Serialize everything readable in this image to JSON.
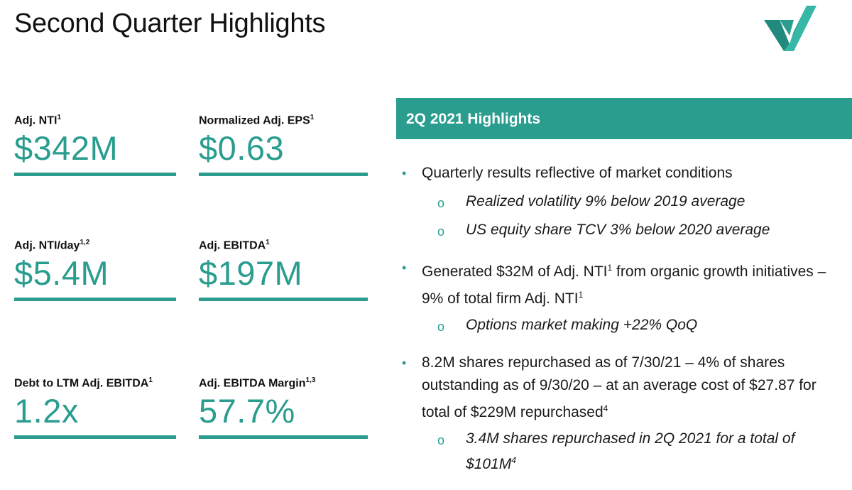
{
  "slide": {
    "title": "Second Quarter Highlights",
    "logo": "virtu-checkmark-logo"
  },
  "metrics": [
    {
      "label": "Adj. NTI",
      "sup": "1",
      "value": "$342M"
    },
    {
      "label": "Normalized Adj. EPS",
      "sup": "1",
      "value": "$0.63"
    },
    {
      "label": "Adj. NTI/day",
      "sup": "1,2",
      "value": "$5.4M"
    },
    {
      "label": "Adj. EBITDA",
      "sup": "1",
      "value": "$197M"
    },
    {
      "label": "Debt to LTM Adj. EBITDA",
      "sup": "1",
      "value": "1.2x"
    },
    {
      "label": "Adj. EBITDA Margin",
      "sup": "1,3",
      "value": "57.7%"
    }
  ],
  "highlights": {
    "header": "2Q 2021 Highlights",
    "bullet1": "Quarterly results reflective of market conditions",
    "bullet1_sub1": "Realized volatility 9% below 2019 average",
    "bullet1_sub2": "US equity share TCV 3% below 2020 average",
    "bullet2_a": "Generated $32M of Adj. NTI",
    "bullet2_sup_a": "1",
    "bullet2_b": " from organic growth initiatives – 9% of total firm Adj. NTI",
    "bullet2_sup_b": "1",
    "bullet2_sub1": "Options market making +22% QoQ",
    "bullet3": "8.2M shares repurchased as of 7/30/21 – 4% of shares outstanding as of 9/30/20 – at an average cost of $27.87 for total of $229M repurchased",
    "bullet3_sup": "4",
    "bullet3_sub1": "3.4M shares repurchased in 2Q 2021 for a total of $101M",
    "bullet3_sub1_sup": "4",
    "bullet_marker": "•",
    "sub_marker": "o"
  },
  "colors": {
    "accent": "#2a9d8f",
    "text": "#111111"
  }
}
